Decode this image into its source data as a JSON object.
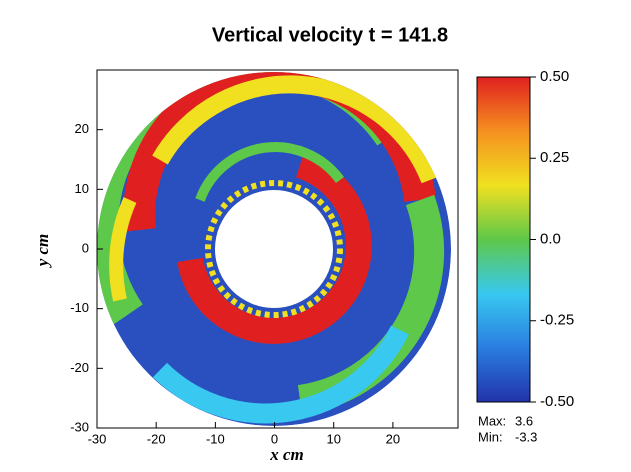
{
  "chart_data": {
    "type": "contour",
    "title": "Vertical velocity t = 141.8",
    "xlabel": "x  cm",
    "ylabel": "y  cm",
    "xlim": [
      -30,
      31
    ],
    "ylim": [
      -30,
      30
    ],
    "xticks": [
      -30,
      -20,
      -10,
      0,
      10,
      20
    ],
    "yticks": [
      -30,
      -20,
      -10,
      0,
      10,
      20
    ],
    "clim": [
      -0.5,
      0.5
    ],
    "colorbar_colors": [
      "#2233aa",
      "#2a7de0",
      "#38c8f0",
      "#5ec84a",
      "#f0e020",
      "#f59020",
      "#e02020"
    ],
    "colorbar_ticks": [
      {
        "value": 0.5,
        "label": "0.50"
      },
      {
        "value": 0.25,
        "label": "0.25"
      },
      {
        "value": 0,
        "label": "0.0"
      },
      {
        "value": -0.25,
        "label": "-0.25"
      },
      {
        "value": -0.5,
        "label": "-0.50"
      }
    ],
    "max_label": "Max:",
    "max": 3.6,
    "min_label": "Min:",
    "min": -3.3
  }
}
